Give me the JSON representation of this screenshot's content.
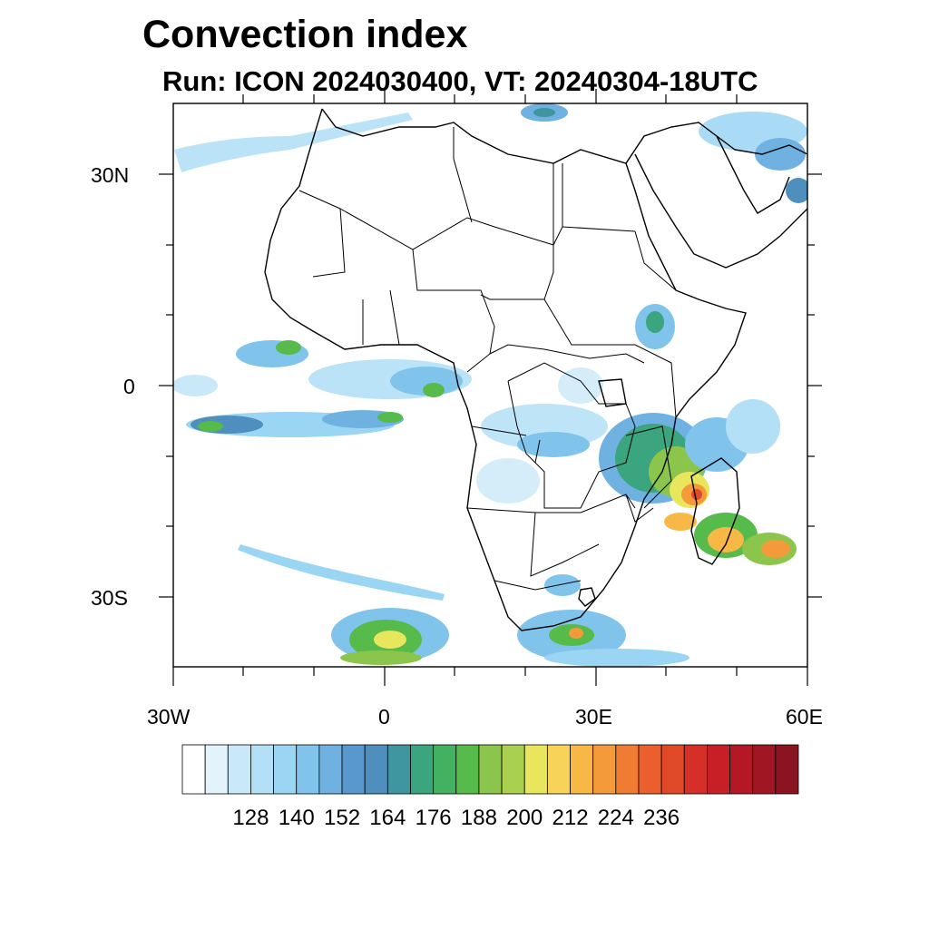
{
  "title": "Convection index",
  "subtitle": "Run: ICON 2024030400,  VT: 20240304-18UTC",
  "map": {
    "lon_range": [
      -30,
      60
    ],
    "lat_range": [
      -40,
      40
    ],
    "projection": "cylindrical equidistant",
    "field": "convection index (shaded)",
    "coastlines_and_borders": true,
    "lat_ticks": [
      {
        "label": "30N",
        "value": 30
      },
      {
        "label": "0",
        "value": 0
      },
      {
        "label": "30S",
        "value": -30
      }
    ],
    "lon_ticks": [
      {
        "label": "30W",
        "value": -30
      },
      {
        "label": "0",
        "value": 0
      },
      {
        "label": "30E",
        "value": 30
      },
      {
        "label": "60E",
        "value": 60
      }
    ]
  },
  "colorbar": {
    "colors": [
      "#ffffff",
      "#e3f3fb",
      "#c9e8f8",
      "#b3e0f6",
      "#9bd5f4",
      "#80c4ec",
      "#6fb2e1",
      "#5998cf",
      "#4e8fbe",
      "#3f95a0",
      "#3aa57e",
      "#42b160",
      "#56bb4a",
      "#8cc54c",
      "#aad050",
      "#e8e65c",
      "#f8d35a",
      "#f8b845",
      "#f59a3a",
      "#f07b32",
      "#ea5f2c",
      "#e04a29",
      "#d62f27",
      "#c81e26",
      "#b41824",
      "#a01622",
      "#8a1420"
    ],
    "tick_labels": [
      "128",
      "140",
      "152",
      "164",
      "176",
      "188",
      "200",
      "212",
      "224",
      "236"
    ]
  }
}
